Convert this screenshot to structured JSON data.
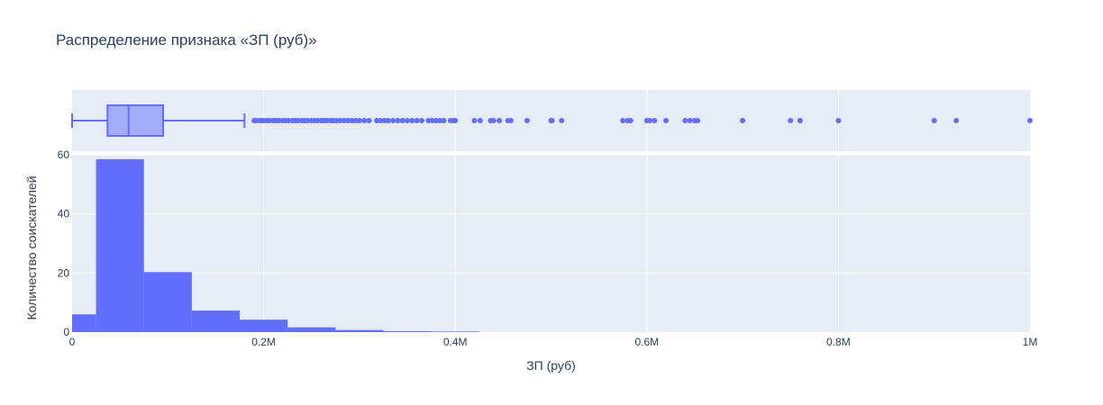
{
  "chart_data": [
    {
      "type": "box",
      "orientation": "horizontal",
      "color": "#636efa",
      "box": {
        "min": 0,
        "q1": 37000,
        "median": 59000,
        "q3": 95000,
        "upper_fence": 180000
      },
      "outliers": [
        190000,
        192000,
        195000,
        198000,
        200000,
        203000,
        206000,
        210000,
        213000,
        216000,
        220000,
        223000,
        226000,
        230000,
        233000,
        236000,
        240000,
        243000,
        246000,
        250000,
        253000,
        256000,
        260000,
        263000,
        266000,
        270000,
        273000,
        276000,
        280000,
        284000,
        288000,
        292000,
        296000,
        300000,
        305000,
        310000,
        318000,
        322000,
        326000,
        330000,
        335000,
        340000,
        345000,
        350000,
        355000,
        360000,
        365000,
        372000,
        376000,
        380000,
        384000,
        388000,
        395000,
        398000,
        400000,
        420000,
        426000,
        437000,
        440000,
        446000,
        455000,
        458000,
        475000,
        500000,
        501000,
        511000,
        575000,
        580000,
        583000,
        600000,
        603000,
        608000,
        620000,
        640000,
        645000,
        650000,
        653000,
        700000,
        750000,
        760000,
        800000,
        900000,
        923000,
        1000000
      ],
      "xlim": [
        0,
        1000000
      ],
      "grid": true
    },
    {
      "type": "histogram",
      "color": "#636efa",
      "bin_width": 50000,
      "bins": [
        {
          "x0": 0,
          "x1": 25000,
          "value": 6
        },
        {
          "x0": 25000,
          "x1": 75000,
          "value": 58.5
        },
        {
          "x0": 75000,
          "x1": 125000,
          "value": 20.3
        },
        {
          "x0": 125000,
          "x1": 175000,
          "value": 7.3
        },
        {
          "x0": 175000,
          "x1": 225000,
          "value": 4.2
        },
        {
          "x0": 225000,
          "x1": 275000,
          "value": 1.6
        },
        {
          "x0": 275000,
          "x1": 325000,
          "value": 0.7
        },
        {
          "x0": 325000,
          "x1": 375000,
          "value": 0.3
        },
        {
          "x0": 375000,
          "x1": 425000,
          "value": 0.2
        }
      ],
      "xlim": [
        0,
        1000000
      ],
      "ylim": [
        0,
        60
      ],
      "x_ticks": [
        0,
        200000,
        400000,
        600000,
        800000,
        1000000
      ],
      "x_tick_labels": [
        "0",
        "0.2M",
        "0.4M",
        "0.6M",
        "0.8M",
        "1M"
      ],
      "y_ticks": [
        0,
        20,
        40,
        60
      ],
      "y_tick_labels": [
        "0",
        "20",
        "40",
        "60"
      ],
      "grid": true
    }
  ],
  "labels": {
    "title": "Распределение признака «ЗП (руб)»",
    "xlabel": "ЗП (руб)",
    "ylabel": "Количество соискателей"
  },
  "colors": {
    "plot_bg": "#e5ecf6",
    "grid": "#ffffff",
    "text": "#2a3f5f"
  }
}
